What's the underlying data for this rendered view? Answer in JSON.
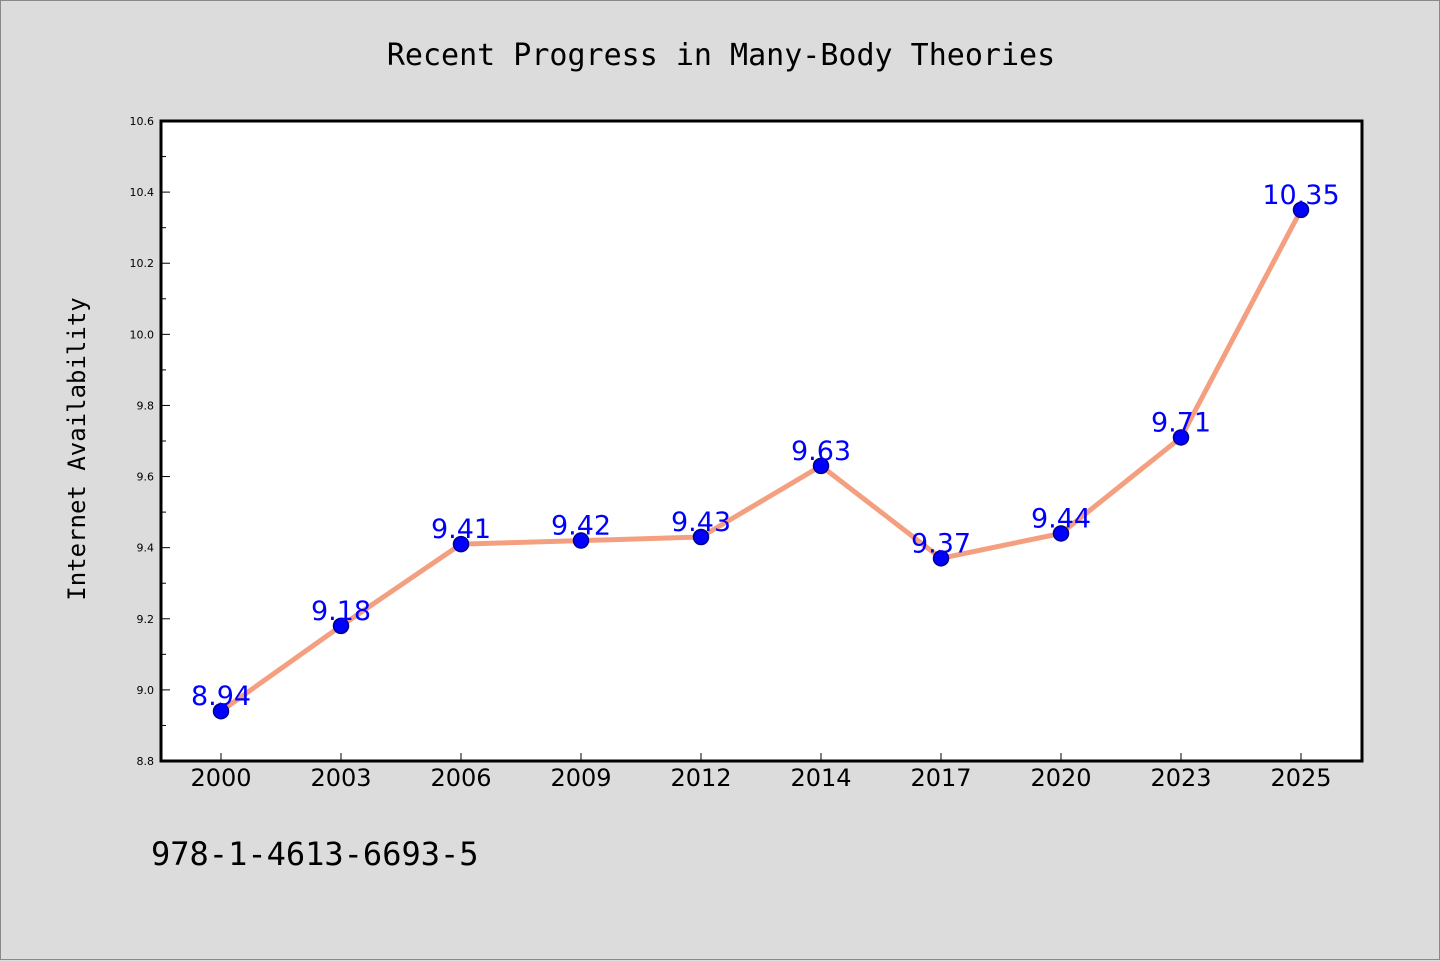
{
  "chart_data": {
    "type": "line",
    "title": "Recent Progress in Many-Body Theories",
    "xlabel": "",
    "ylabel": "Internet Availability",
    "categories": [
      "2000",
      "2003",
      "2006",
      "2009",
      "2012",
      "2014",
      "2017",
      "2020",
      "2023",
      "2025"
    ],
    "series": [
      {
        "values": [
          8.94,
          9.18,
          9.41,
          9.42,
          9.43,
          9.63,
          9.37,
          9.44,
          9.71,
          10.35
        ],
        "labels": [
          "8.94",
          "9.18",
          "9.41",
          "9.42",
          "9.43",
          "9.63",
          "9.37",
          "9.44",
          "9.71",
          "10.35"
        ]
      }
    ],
    "ylim": [
      8.8,
      10.6
    ],
    "yticks": [
      "8.8",
      "9.0",
      "9.2",
      "9.4",
      "9.6",
      "9.8",
      "10.0",
      "10.2",
      "10.4",
      "10.6"
    ],
    "grid": false,
    "legend": "none"
  },
  "footer": {
    "isbn": "978-1-4613-6693-5"
  },
  "colors": {
    "line": "#f4a080",
    "marker_fill": "#0000ff",
    "marker_edge": "#00008b",
    "data_label": "#0000ff",
    "background": "#dcdcdc",
    "plot_background": "#ffffff"
  }
}
